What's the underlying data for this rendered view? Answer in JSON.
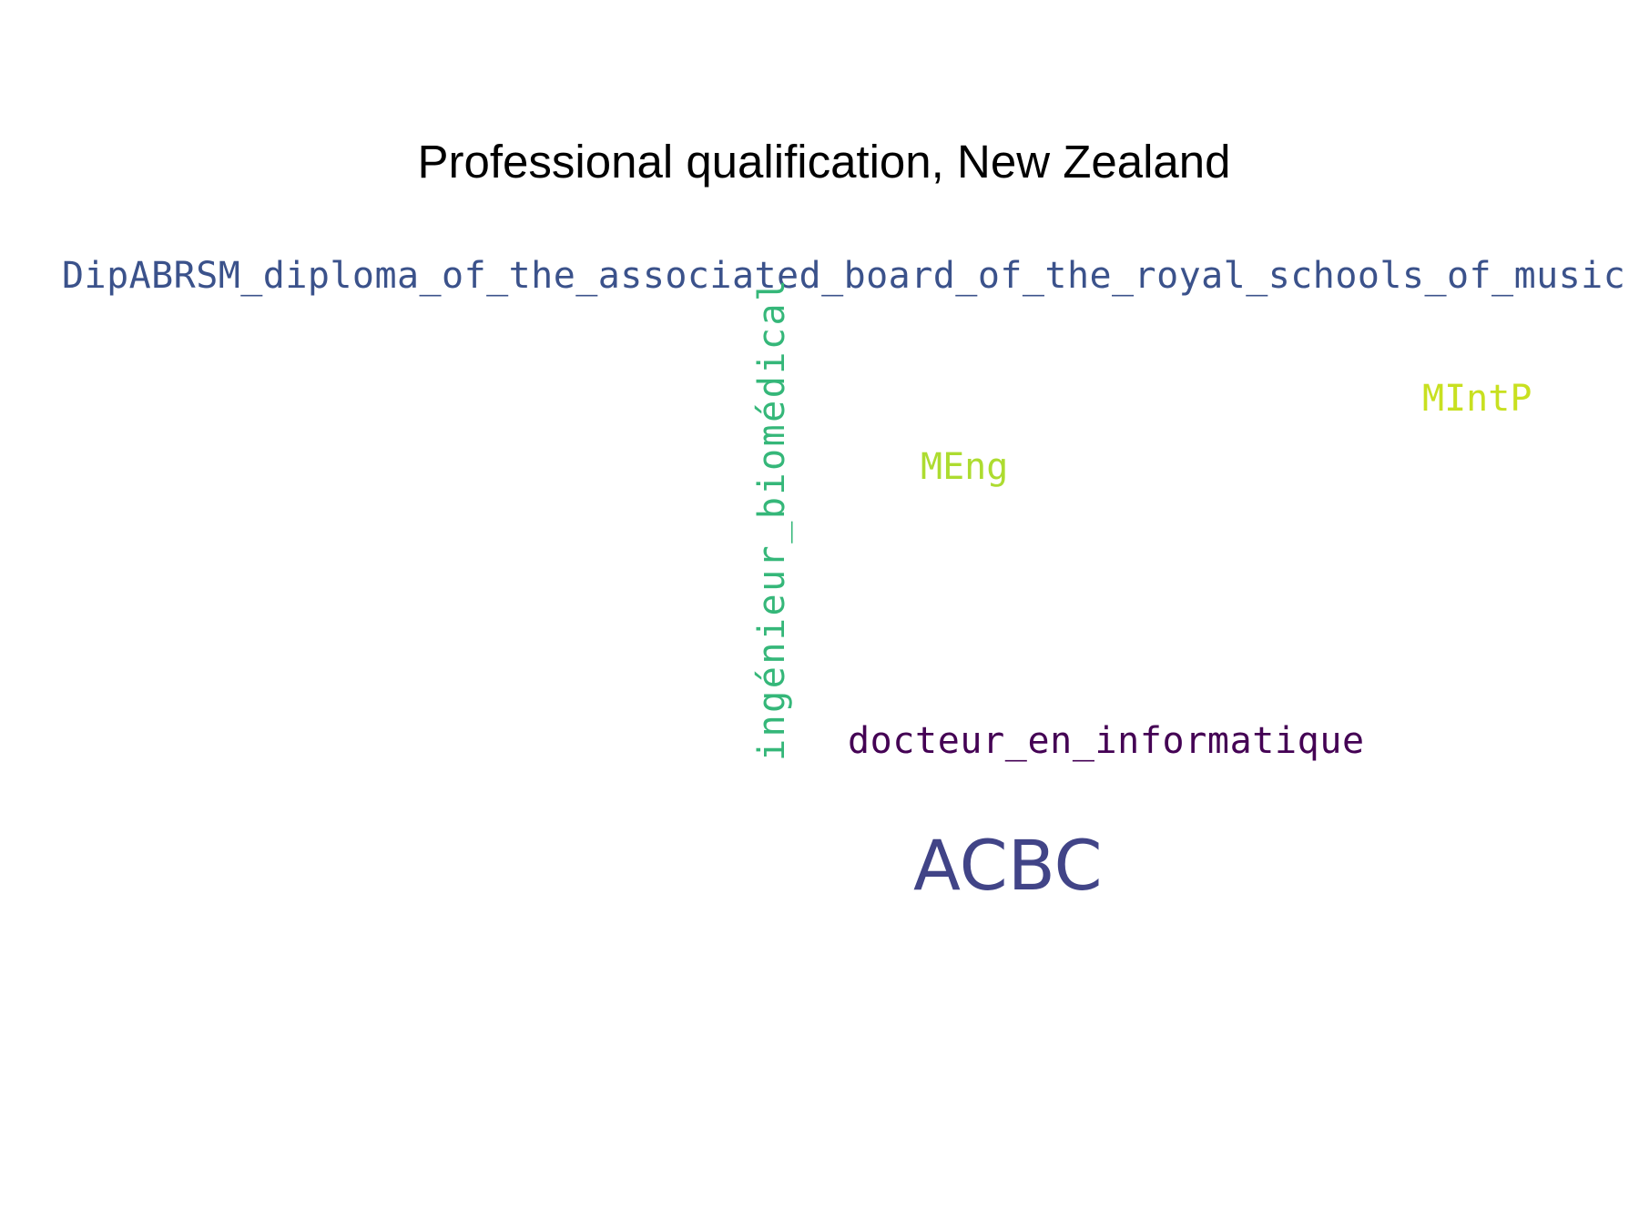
{
  "title": "Professional qualification, New Zealand",
  "words": [
    {
      "id": "dip",
      "text": "DipABRSM_diploma_of_the_associated_board_of_the_royal_schools_of_music",
      "color": "#3b528b",
      "orientation": "horizontal"
    },
    {
      "id": "ing",
      "text": "ingénieur_biomédical",
      "color": "#35b779",
      "orientation": "vertical"
    },
    {
      "id": "mintp",
      "text": "MIntP",
      "color": "#c8e020",
      "orientation": "horizontal"
    },
    {
      "id": "meng",
      "text": "MEng",
      "color": "#addc30",
      "orientation": "horizontal"
    },
    {
      "id": "doc",
      "text": "docteur_en_informatique",
      "color": "#440154",
      "orientation": "horizontal"
    },
    {
      "id": "acbc",
      "text": "ACBC",
      "color": "#414487",
      "orientation": "horizontal"
    }
  ]
}
